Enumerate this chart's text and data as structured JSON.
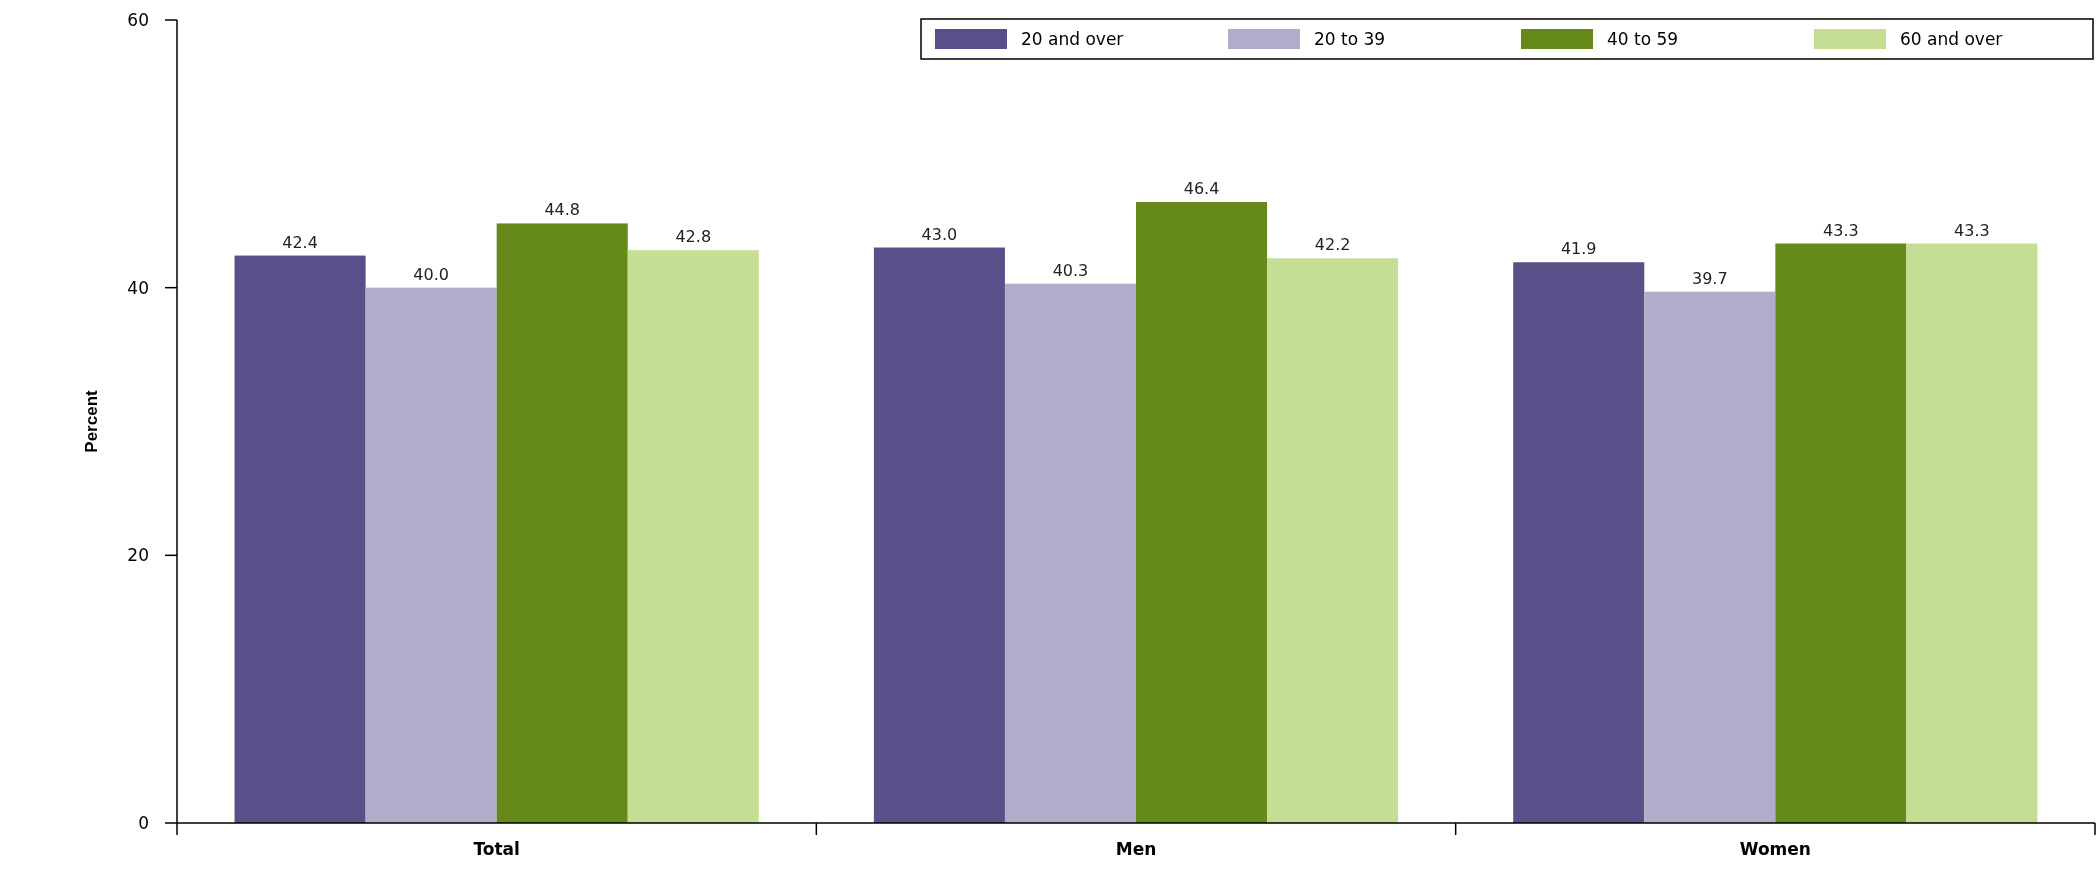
{
  "chart_data": {
    "type": "bar",
    "ylabel": "Percent",
    "categories": [
      "Total",
      "Men",
      "Women"
    ],
    "series": [
      {
        "name": "20 and over",
        "color": "#5b4f8a",
        "values": [
          42.4,
          43.0,
          41.9
        ],
        "value_labels": [
          "42.4",
          "43.0",
          "41.9"
        ]
      },
      {
        "name": "20 to 39",
        "color": "#b1acca",
        "values": [
          40.0,
          40.3,
          39.7
        ],
        "value_labels": [
          "40.0",
          "40.3",
          "39.7"
        ]
      },
      {
        "name": "40 to 59",
        "color": "#668a19",
        "values": [
          44.8,
          46.4,
          43.3
        ],
        "value_labels": [
          "44.8",
          "46.4",
          "43.3"
        ]
      },
      {
        "name": "60 and over",
        "color": "#c4df94",
        "values": [
          42.8,
          42.2,
          43.3
        ],
        "value_labels": [
          "42.8",
          "42.2",
          "43.3"
        ]
      }
    ],
    "ylim": [
      0,
      60
    ],
    "yticks": [
      0,
      20,
      40,
      60
    ],
    "legend": "top right",
    "grid": false
  }
}
